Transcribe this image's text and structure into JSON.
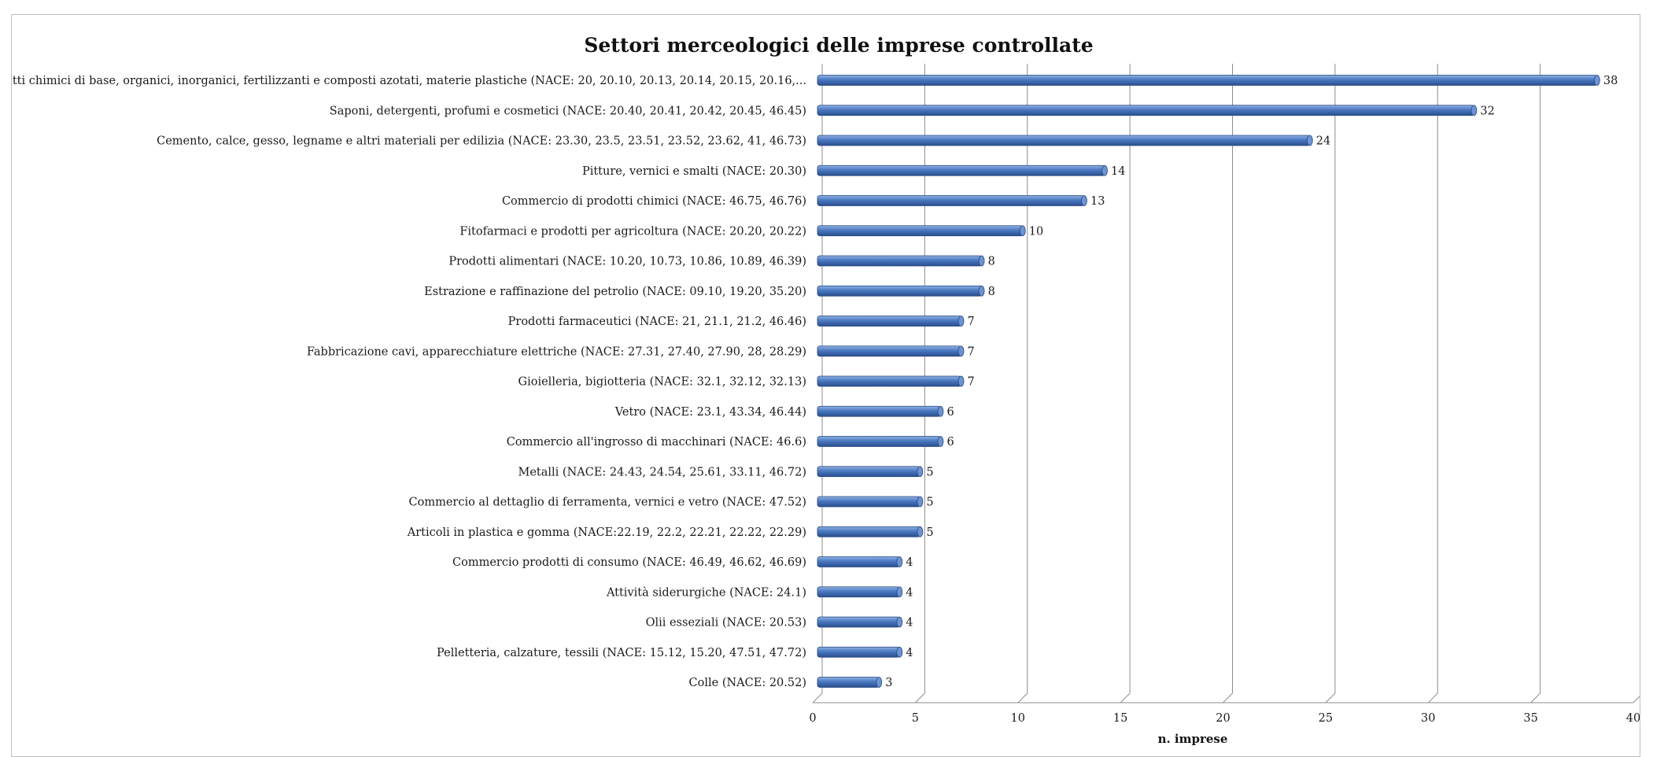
{
  "chart_data": {
    "type": "bar",
    "orientation": "horizontal",
    "title": "Settori merceologici delle imprese controllate",
    "xlabel": "n. imprese",
    "ylabel": "",
    "xlim": [
      0,
      40
    ],
    "xticks": [
      0,
      5,
      10,
      15,
      20,
      25,
      30,
      35,
      40
    ],
    "grid": true,
    "legend": "none",
    "bar_color": "#3f6fb7",
    "categories": [
      "Prodotti chimici di base, organici, inorganici, fertilizzanti e composti azotati, materie plastiche (NACE: 20, 20.10, 20.13, 20.14, 20.15, 20.16,...",
      "Saponi, detergenti, profumi e cosmetici (NACE: 20.40, 20.41, 20.42, 20.45, 46.45)",
      "Cemento, calce, gesso, legname e altri materiali per edilizia (NACE: 23.30, 23.5, 23.51, 23.52, 23.62, 41, 46.73)",
      "Pitture, vernici e smalti (NACE: 20.30)",
      "Commercio di prodotti chimici (NACE: 46.75, 46.76)",
      "Fitofarmaci e prodotti per agricoltura (NACE: 20.20, 20.22)",
      "Prodotti alimentari (NACE: 10.20, 10.73, 10.86, 10.89, 46.39)",
      "Estrazione e raffinazione del petrolio (NACE: 09.10, 19.20, 35.20)",
      "Prodotti farmaceutici (NACE: 21, 21.1, 21.2, 46.46)",
      "Fabbricazione cavi, apparecchiature elettriche (NACE: 27.31, 27.40, 27.90, 28, 28.29)",
      "Gioielleria, bigiotteria (NACE: 32.1, 32.12, 32.13)",
      "Vetro (NACE: 23.1, 43.34, 46.44)",
      "Commercio all'ingrosso di macchinari (NACE: 46.6)",
      "Metalli (NACE: 24.43, 24.54, 25.61, 33.11, 46.72)",
      "Commercio al dettaglio di ferramenta, vernici e vetro (NACE: 47.52)",
      "Articoli in plastica e gomma (NACE:22.19, 22.2, 22.21, 22.22, 22.29)",
      "Commercio prodotti di consumo (NACE: 46.49, 46.62, 46.69)",
      "Attività siderurgiche (NACE: 24.1)",
      "Olii esseziali (NACE: 20.53)",
      "Pelletteria, calzature, tessili (NACE: 15.12, 15.20, 47.51, 47.72)",
      "Colle (NACE: 20.52)"
    ],
    "values": [
      38,
      32,
      24,
      14,
      13,
      10,
      8,
      8,
      7,
      7,
      7,
      6,
      6,
      5,
      5,
      5,
      4,
      4,
      4,
      4,
      3
    ]
  }
}
